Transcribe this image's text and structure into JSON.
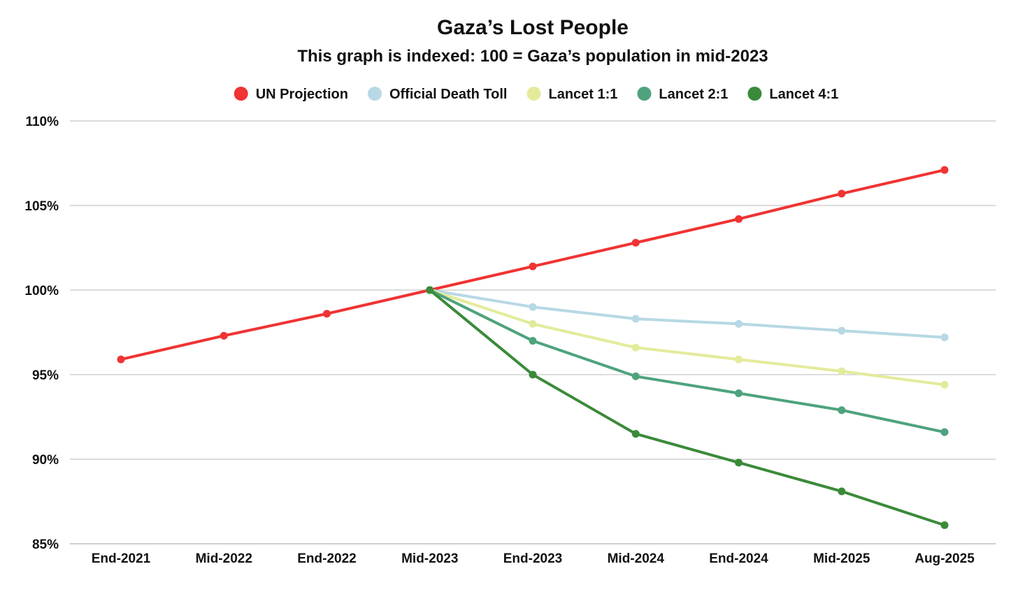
{
  "chart_data": {
    "type": "line",
    "title": "Gaza’s Lost People",
    "subtitle": "This graph is indexed: 100 = Gaza’s population in mid-2023",
    "xlabel": "",
    "ylabel": "",
    "categories": [
      "End-2021",
      "Mid-2022",
      "End-2022",
      "Mid-2023",
      "End-2023",
      "Mid-2024",
      "End-2024",
      "Mid-2025",
      "Aug-2025"
    ],
    "ylim": [
      85,
      110
    ],
    "yticks": [
      110,
      105,
      100,
      95,
      90,
      85
    ],
    "ytick_labels": [
      "110%",
      "105%",
      "100%",
      "95%",
      "90%",
      "85%"
    ],
    "grid": true,
    "legend_position": "top-center",
    "series": [
      {
        "name": "UN Projection",
        "color": "#f03333",
        "values": [
          95.9,
          97.3,
          98.6,
          100.0,
          101.4,
          102.8,
          104.2,
          105.7,
          107.1
        ]
      },
      {
        "name": "Official Death Toll",
        "color": "#b7d8e4",
        "values": [
          null,
          null,
          null,
          100.0,
          99.0,
          98.3,
          98.0,
          97.6,
          97.2
        ]
      },
      {
        "name": "Lancet 1:1",
        "color": "#e3eb9a",
        "values": [
          null,
          null,
          null,
          100.0,
          98.0,
          96.6,
          95.9,
          95.2,
          94.4
        ]
      },
      {
        "name": "Lancet 2:1",
        "color": "#4ea37c",
        "values": [
          null,
          null,
          null,
          100.0,
          97.0,
          94.9,
          93.9,
          92.9,
          91.6
        ]
      },
      {
        "name": "Lancet 4:1",
        "color": "#3b8a3a",
        "values": [
          null,
          null,
          null,
          100.0,
          95.0,
          91.5,
          89.8,
          88.1,
          86.1
        ]
      }
    ]
  }
}
